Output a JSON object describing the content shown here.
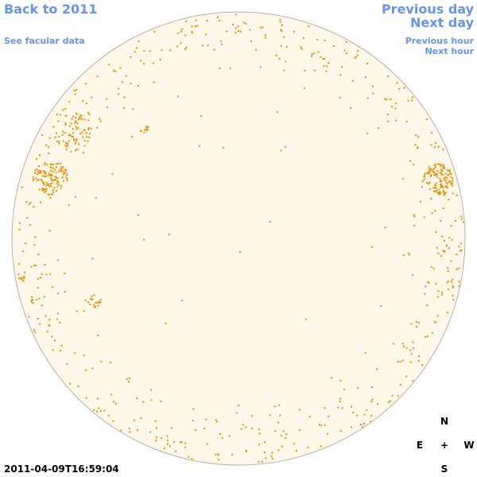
{
  "nav": {
    "back_label": "Back to 2011",
    "facular_label": "See facular data",
    "prev_day_label": "Previous day",
    "next_day_label": "Next day",
    "prev_hour_label": "Previous hour",
    "next_hour_label": "Next hour"
  },
  "compass": {
    "n": "N",
    "e": "E",
    "center": "+",
    "w": "W",
    "s": "S"
  },
  "timestamp": "2011-04-09T16:59:04",
  "colors": {
    "link": "#6495ed",
    "disk_fill": "#fdf8ea",
    "disk_border": "#b8b0a0",
    "activity": "#f08c00"
  }
}
